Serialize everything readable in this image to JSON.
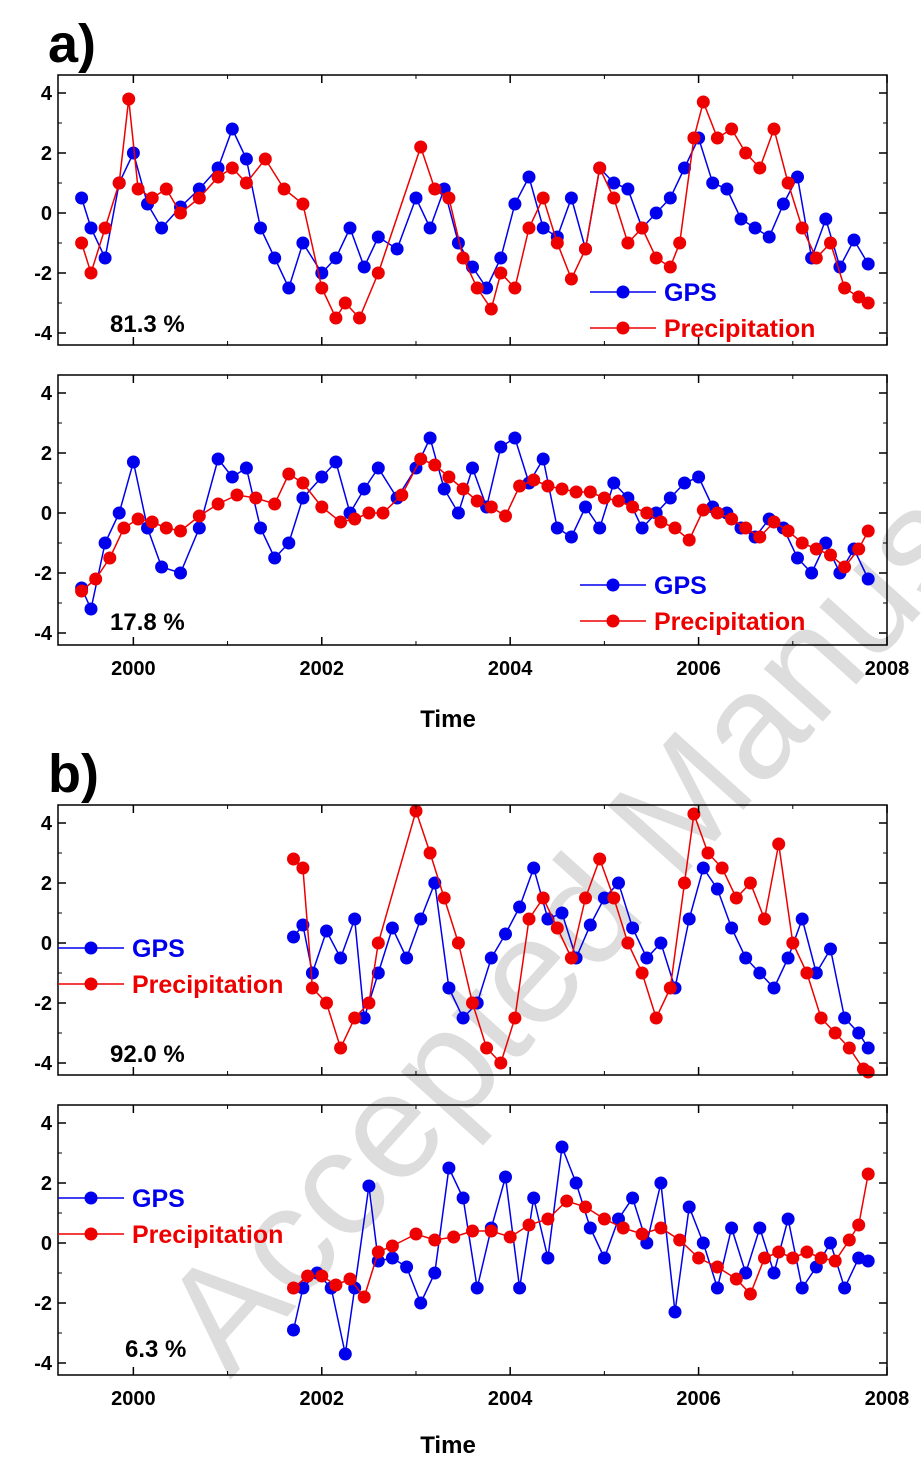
{
  "figure": {
    "panel_a_label": "a)",
    "panel_b_label": "b)",
    "xlabel": "Time",
    "watermark": "Accepted Manuscript"
  },
  "colors": {
    "gps": "#0000ee",
    "precipitation": "#ee0000",
    "axis": "#000000",
    "watermark": "#dddddd"
  },
  "chart_data": [
    {
      "type": "line",
      "id": "a1",
      "xlim": [
        1999.2,
        2008.0
      ],
      "ylim": [
        -4.4,
        4.6
      ],
      "yticks": [
        4,
        2,
        0,
        -2,
        -4
      ],
      "yticklabels": [
        "4",
        "2",
        "0",
        "-2",
        "-4"
      ],
      "xticks": [
        2000,
        2002,
        2004,
        2006,
        2008
      ],
      "xticklabels": [],
      "annotation": "81.3 %",
      "legend_position": "bottom-right",
      "series": [
        {
          "name": "GPS",
          "color": "#0000ee",
          "x": [
            1999.45,
            1999.55,
            1999.7,
            1999.85,
            2000.0,
            2000.15,
            2000.3,
            2000.5,
            2000.7,
            2000.9,
            2001.05,
            2001.2,
            2001.35,
            2001.5,
            2001.65,
            2001.8,
            2002.0,
            2002.15,
            2002.3,
            2002.45,
            2002.6,
            2002.8,
            2003.0,
            2003.15,
            2003.3,
            2003.45,
            2003.6,
            2003.75,
            2003.9,
            2004.05,
            2004.2,
            2004.35,
            2004.5,
            2004.65,
            2004.8,
            2004.95,
            2005.1,
            2005.25,
            2005.4,
            2005.55,
            2005.7,
            2005.85,
            2006.0,
            2006.15,
            2006.3,
            2006.45,
            2006.6,
            2006.75,
            2006.9,
            2007.05,
            2007.2,
            2007.35,
            2007.5,
            2007.65,
            2007.8
          ],
          "y": [
            0.5,
            -0.5,
            -1.5,
            1.0,
            2.0,
            0.3,
            -0.5,
            0.2,
            0.8,
            1.5,
            2.8,
            1.8,
            -0.5,
            -1.5,
            -2.5,
            -1.0,
            -2.0,
            -1.5,
            -0.5,
            -1.8,
            -0.8,
            -1.2,
            0.5,
            -0.5,
            0.8,
            -1.0,
            -1.8,
            -2.5,
            -1.5,
            0.3,
            1.2,
            -0.5,
            -0.8,
            0.5,
            -1.2,
            1.5,
            1.0,
            0.8,
            -0.5,
            0.0,
            0.5,
            1.5,
            2.5,
            1.0,
            0.8,
            -0.2,
            -0.5,
            -0.8,
            0.3,
            1.2,
            -1.5,
            -0.2,
            -1.8,
            -0.9,
            -1.7
          ]
        },
        {
          "name": "Precipitation",
          "color": "#ee0000",
          "x": [
            1999.45,
            1999.55,
            1999.7,
            1999.85,
            1999.95,
            2000.05,
            2000.2,
            2000.35,
            2000.5,
            2000.7,
            2000.9,
            2001.05,
            2001.2,
            2001.4,
            2001.6,
            2001.8,
            2002.0,
            2002.15,
            2002.25,
            2002.4,
            2002.6,
            2003.05,
            2003.2,
            2003.35,
            2003.5,
            2003.65,
            2003.8,
            2003.9,
            2004.05,
            2004.2,
            2004.35,
            2004.5,
            2004.65,
            2004.8,
            2004.95,
            2005.1,
            2005.25,
            2005.4,
            2005.55,
            2005.7,
            2005.8,
            2005.95,
            2006.05,
            2006.2,
            2006.35,
            2006.5,
            2006.65,
            2006.8,
            2006.95,
            2007.1,
            2007.25,
            2007.4,
            2007.55,
            2007.7,
            2007.8
          ],
          "y": [
            -1.0,
            -2.0,
            -0.5,
            1.0,
            3.8,
            0.8,
            0.5,
            0.8,
            0.0,
            0.5,
            1.2,
            1.5,
            1.0,
            1.8,
            0.8,
            0.3,
            -2.5,
            -3.5,
            -3.0,
            -3.5,
            -2.0,
            2.2,
            0.8,
            0.5,
            -1.5,
            -2.5,
            -3.2,
            -2.0,
            -2.5,
            -0.5,
            0.5,
            -1.0,
            -2.2,
            -1.2,
            1.5,
            0.5,
            -1.0,
            -0.5,
            -1.5,
            -1.8,
            -1.0,
            2.5,
            3.7,
            2.5,
            2.8,
            2.0,
            1.5,
            2.8,
            1.0,
            -0.5,
            -1.5,
            -1.0,
            -2.5,
            -2.8,
            -3.0
          ]
        }
      ]
    },
    {
      "type": "line",
      "id": "a2",
      "xlim": [
        1999.2,
        2008.0
      ],
      "ylim": [
        -4.4,
        4.6
      ],
      "yticks": [
        4,
        2,
        0,
        -2,
        -4
      ],
      "yticklabels": [
        "4",
        "2",
        "0",
        "-2",
        "-4"
      ],
      "xticks": [
        2000,
        2002,
        2004,
        2006,
        2008
      ],
      "xticklabels": [
        "2000",
        "2002",
        "2004",
        "2006",
        "2008"
      ],
      "annotation": "17.8 %",
      "legend_position": "bottom-right",
      "series": [
        {
          "name": "GPS",
          "color": "#0000ee",
          "x": [
            1999.45,
            1999.55,
            1999.7,
            1999.85,
            2000.0,
            2000.15,
            2000.3,
            2000.5,
            2000.7,
            2000.9,
            2001.05,
            2001.2,
            2001.35,
            2001.5,
            2001.65,
            2001.8,
            2002.0,
            2002.15,
            2002.3,
            2002.45,
            2002.6,
            2002.8,
            2003.0,
            2003.15,
            2003.3,
            2003.45,
            2003.6,
            2003.75,
            2003.9,
            2004.05,
            2004.2,
            2004.35,
            2004.5,
            2004.65,
            2004.8,
            2004.95,
            2005.1,
            2005.25,
            2005.4,
            2005.55,
            2005.7,
            2005.85,
            2006.0,
            2006.15,
            2006.3,
            2006.45,
            2006.6,
            2006.75,
            2006.9,
            2007.05,
            2007.2,
            2007.35,
            2007.5,
            2007.65,
            2007.8
          ],
          "y": [
            -2.5,
            -3.2,
            -1.0,
            0.0,
            1.7,
            -0.5,
            -1.8,
            -2.0,
            -0.5,
            1.8,
            1.2,
            1.5,
            -0.5,
            -1.5,
            -1.0,
            0.5,
            1.2,
            1.7,
            0.0,
            0.8,
            1.5,
            0.5,
            1.5,
            2.5,
            0.8,
            0.0,
            1.5,
            0.2,
            2.2,
            2.5,
            1.0,
            1.8,
            -0.5,
            -0.8,
            0.2,
            -0.5,
            1.0,
            0.5,
            -0.5,
            0.0,
            0.5,
            1.0,
            1.2,
            0.2,
            0.0,
            -0.5,
            -0.8,
            -0.2,
            -0.5,
            -1.5,
            -2.0,
            -1.0,
            -2.0,
            -1.2,
            -2.2
          ]
        },
        {
          "name": "Precipitation",
          "color": "#ee0000",
          "x": [
            1999.45,
            1999.6,
            1999.75,
            1999.9,
            2000.05,
            2000.2,
            2000.35,
            2000.5,
            2000.7,
            2000.9,
            2001.1,
            2001.3,
            2001.5,
            2001.65,
            2001.8,
            2002.0,
            2002.2,
            2002.35,
            2002.5,
            2002.65,
            2002.85,
            2003.05,
            2003.2,
            2003.35,
            2003.5,
            2003.65,
            2003.8,
            2003.95,
            2004.1,
            2004.25,
            2004.4,
            2004.55,
            2004.7,
            2004.85,
            2005.0,
            2005.15,
            2005.3,
            2005.45,
            2005.6,
            2005.75,
            2005.9,
            2006.05,
            2006.2,
            2006.35,
            2006.5,
            2006.65,
            2006.8,
            2006.95,
            2007.1,
            2007.25,
            2007.4,
            2007.55,
            2007.7,
            2007.8
          ],
          "y": [
            -2.6,
            -2.2,
            -1.5,
            -0.5,
            -0.2,
            -0.3,
            -0.5,
            -0.6,
            -0.1,
            0.3,
            0.6,
            0.5,
            0.3,
            1.3,
            1.0,
            0.2,
            -0.3,
            -0.2,
            0.0,
            0.0,
            0.6,
            1.8,
            1.6,
            1.2,
            0.8,
            0.4,
            0.2,
            -0.1,
            0.9,
            1.1,
            0.9,
            0.8,
            0.7,
            0.7,
            0.5,
            0.4,
            0.2,
            0.0,
            -0.3,
            -0.5,
            -0.9,
            0.1,
            0.0,
            -0.2,
            -0.5,
            -0.8,
            -0.3,
            -0.6,
            -1.0,
            -1.2,
            -1.4,
            -1.8,
            -1.2,
            -0.6
          ]
        }
      ]
    },
    {
      "type": "line",
      "id": "b1",
      "xlim": [
        1999.2,
        2008.0
      ],
      "ylim": [
        -4.4,
        4.6
      ],
      "yticks": [
        4,
        2,
        0,
        -2,
        -4
      ],
      "yticklabels": [
        "4",
        "2",
        "0",
        "-2",
        "-4"
      ],
      "xticks": [
        2000,
        2002,
        2004,
        2006,
        2008
      ],
      "xticklabels": [],
      "annotation": "92.0 %",
      "legend_position": "left",
      "series": [
        {
          "name": "GPS",
          "color": "#0000ee",
          "x": [
            2001.7,
            2001.8,
            2001.9,
            2002.05,
            2002.2,
            2002.35,
            2002.45,
            2002.6,
            2002.75,
            2002.9,
            2003.05,
            2003.2,
            2003.35,
            2003.5,
            2003.65,
            2003.8,
            2003.95,
            2004.1,
            2004.25,
            2004.4,
            2004.55,
            2004.7,
            2004.85,
            2005.0,
            2005.15,
            2005.3,
            2005.45,
            2005.6,
            2005.75,
            2005.9,
            2006.05,
            2006.2,
            2006.35,
            2006.5,
            2006.65,
            2006.8,
            2006.95,
            2007.1,
            2007.25,
            2007.4,
            2007.55,
            2007.7,
            2007.8
          ],
          "y": [
            0.2,
            0.6,
            -1.0,
            0.4,
            -0.5,
            0.8,
            -2.5,
            -1.0,
            0.5,
            -0.5,
            0.8,
            2.0,
            -1.5,
            -2.5,
            -2.0,
            -0.5,
            0.3,
            1.2,
            2.5,
            0.8,
            1.0,
            -0.5,
            0.6,
            1.5,
            2.0,
            0.5,
            -0.5,
            0.0,
            -1.5,
            0.8,
            2.5,
            1.8,
            0.5,
            -0.5,
            -1.0,
            -1.5,
            -0.5,
            0.8,
            -1.0,
            -0.2,
            -2.5,
            -3.0,
            -3.5
          ]
        },
        {
          "name": "Precipitation",
          "color": "#ee0000",
          "x": [
            2001.7,
            2001.8,
            2001.9,
            2002.05,
            2002.2,
            2002.35,
            2002.5,
            2002.6,
            2003.0,
            2003.15,
            2003.3,
            2003.45,
            2003.6,
            2003.75,
            2003.9,
            2004.05,
            2004.2,
            2004.35,
            2004.5,
            2004.65,
            2004.8,
            2004.95,
            2005.1,
            2005.25,
            2005.4,
            2005.55,
            2005.7,
            2005.85,
            2005.95,
            2006.1,
            2006.25,
            2006.4,
            2006.55,
            2006.7,
            2006.85,
            2007.0,
            2007.15,
            2007.3,
            2007.45,
            2007.6,
            2007.75,
            2007.8
          ],
          "y": [
            2.8,
            2.5,
            -1.5,
            -2.0,
            -3.5,
            -2.5,
            -2.0,
            0.0,
            4.4,
            3.0,
            1.5,
            0.0,
            -2.0,
            -3.5,
            -4.0,
            -2.5,
            0.8,
            1.5,
            0.5,
            -0.5,
            1.5,
            2.8,
            1.5,
            0.0,
            -1.0,
            -2.5,
            -1.5,
            2.0,
            4.3,
            3.0,
            2.5,
            1.5,
            2.0,
            0.8,
            3.3,
            0.0,
            -1.0,
            -2.5,
            -3.0,
            -3.5,
            -4.2,
            -4.3
          ]
        }
      ]
    },
    {
      "type": "line",
      "id": "b2",
      "xlim": [
        1999.2,
        2008.0
      ],
      "ylim": [
        -4.4,
        4.6
      ],
      "yticks": [
        4,
        2,
        0,
        -2,
        -4
      ],
      "yticklabels": [
        "4",
        "2",
        "0",
        "-2",
        "-4"
      ],
      "xticks": [
        2000,
        2002,
        2004,
        2006,
        2008
      ],
      "xticklabels": [
        "2000",
        "2002",
        "2004",
        "2006",
        "2008"
      ],
      "annotation": "6.3 %",
      "legend_position": "left",
      "series": [
        {
          "name": "GPS",
          "color": "#0000ee",
          "x": [
            2001.7,
            2001.8,
            2001.95,
            2002.1,
            2002.25,
            2002.35,
            2002.5,
            2002.6,
            2002.75,
            2002.9,
            2003.05,
            2003.2,
            2003.35,
            2003.5,
            2003.65,
            2003.8,
            2003.95,
            2004.1,
            2004.25,
            2004.4,
            2004.55,
            2004.7,
            2004.85,
            2005.0,
            2005.15,
            2005.3,
            2005.45,
            2005.6,
            2005.75,
            2005.9,
            2006.05,
            2006.2,
            2006.35,
            2006.5,
            2006.65,
            2006.8,
            2006.95,
            2007.1,
            2007.25,
            2007.4,
            2007.55,
            2007.7,
            2007.8
          ],
          "y": [
            -2.9,
            -1.5,
            -1.0,
            -1.5,
            -3.7,
            -1.5,
            1.9,
            -0.6,
            -0.5,
            -0.8,
            -2.0,
            -1.0,
            2.5,
            1.5,
            -1.5,
            0.5,
            2.2,
            -1.5,
            1.5,
            -0.5,
            3.2,
            2.0,
            0.5,
            -0.5,
            0.8,
            1.5,
            0.0,
            2.0,
            -2.3,
            1.2,
            0.0,
            -1.5,
            0.5,
            -1.0,
            0.5,
            -1.0,
            0.8,
            -1.5,
            -0.8,
            0.0,
            -1.5,
            -0.5,
            -0.6
          ]
        },
        {
          "name": "Precipitation",
          "color": "#ee0000",
          "x": [
            2001.7,
            2001.85,
            2002.0,
            2002.15,
            2002.3,
            2002.45,
            2002.6,
            2002.75,
            2003.0,
            2003.2,
            2003.4,
            2003.6,
            2003.8,
            2004.0,
            2004.2,
            2004.4,
            2004.6,
            2004.8,
            2005.0,
            2005.2,
            2005.4,
            2005.6,
            2005.8,
            2006.0,
            2006.2,
            2006.4,
            2006.55,
            2006.7,
            2006.85,
            2007.0,
            2007.15,
            2007.3,
            2007.45,
            2007.6,
            2007.7,
            2007.8
          ],
          "y": [
            -1.5,
            -1.1,
            -1.1,
            -1.4,
            -1.2,
            -1.8,
            -0.3,
            -0.1,
            0.3,
            0.1,
            0.2,
            0.4,
            0.4,
            0.2,
            0.6,
            0.8,
            1.4,
            1.2,
            0.8,
            0.5,
            0.3,
            0.5,
            0.1,
            -0.5,
            -0.8,
            -1.2,
            -1.7,
            -0.5,
            -0.3,
            -0.5,
            -0.3,
            -0.5,
            -0.6,
            0.1,
            0.6,
            2.3
          ]
        }
      ]
    }
  ]
}
